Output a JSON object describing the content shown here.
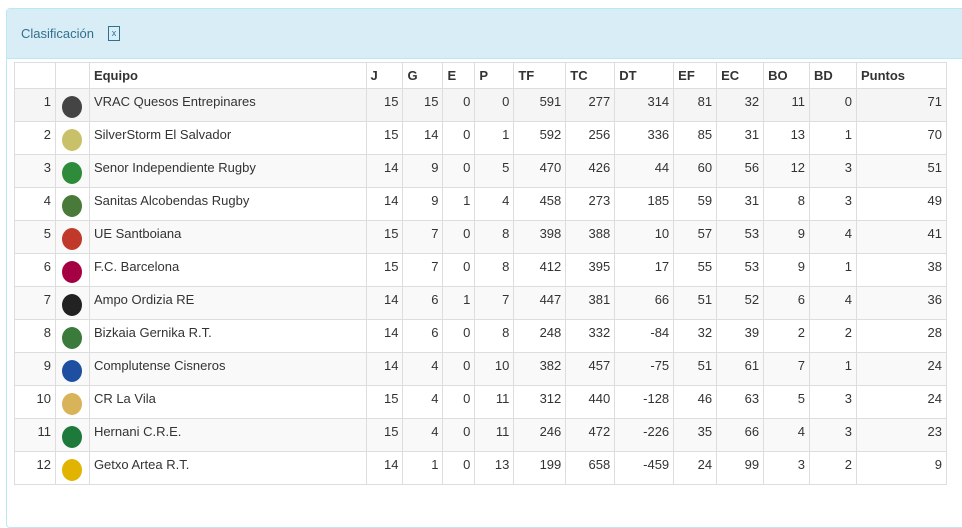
{
  "panel": {
    "title": "Clasificación",
    "export_icon": "excel-file-icon"
  },
  "columns": [
    "",
    "",
    "Equipo",
    "J",
    "G",
    "E",
    "P",
    "TF",
    "TC",
    "DT",
    "EF",
    "EC",
    "BO",
    "BD",
    "Puntos"
  ],
  "rows": [
    {
      "pos": "1",
      "team": "VRAC Quesos Entrepinares",
      "logo_color": "#444444",
      "J": "15",
      "G": "15",
      "E": "0",
      "P": "0",
      "TF": "591",
      "TC": "277",
      "DT": "314",
      "EF": "81",
      "EC": "32",
      "BO": "11",
      "BD": "0",
      "Puntos": "71"
    },
    {
      "pos": "2",
      "team": "SilverStorm El Salvador",
      "logo_color": "#c9c06a",
      "J": "15",
      "G": "14",
      "E": "0",
      "P": "1",
      "TF": "592",
      "TC": "256",
      "DT": "336",
      "EF": "85",
      "EC": "31",
      "BO": "13",
      "BD": "1",
      "Puntos": "70"
    },
    {
      "pos": "3",
      "team": "Senor Independiente Rugby",
      "logo_color": "#2e8b3a",
      "J": "14",
      "G": "9",
      "E": "0",
      "P": "5",
      "TF": "470",
      "TC": "426",
      "DT": "44",
      "EF": "60",
      "EC": "56",
      "BO": "12",
      "BD": "3",
      "Puntos": "51"
    },
    {
      "pos": "4",
      "team": "Sanitas Alcobendas Rugby",
      "logo_color": "#4a7a3a",
      "J": "14",
      "G": "9",
      "E": "1",
      "P": "4",
      "TF": "458",
      "TC": "273",
      "DT": "185",
      "EF": "59",
      "EC": "31",
      "BO": "8",
      "BD": "3",
      "Puntos": "49"
    },
    {
      "pos": "5",
      "team": "UE Santboiana",
      "logo_color": "#c0392b",
      "J": "15",
      "G": "7",
      "E": "0",
      "P": "8",
      "TF": "398",
      "TC": "388",
      "DT": "10",
      "EF": "57",
      "EC": "53",
      "BO": "9",
      "BD": "4",
      "Puntos": "41"
    },
    {
      "pos": "6",
      "team": "F.C. Barcelona",
      "logo_color": "#a50044",
      "J": "15",
      "G": "7",
      "E": "0",
      "P": "8",
      "TF": "412",
      "TC": "395",
      "DT": "17",
      "EF": "55",
      "EC": "53",
      "BO": "9",
      "BD": "1",
      "Puntos": "38"
    },
    {
      "pos": "7",
      "team": "Ampo Ordizia RE",
      "logo_color": "#222222",
      "J": "14",
      "G": "6",
      "E": "1",
      "P": "7",
      "TF": "447",
      "TC": "381",
      "DT": "66",
      "EF": "51",
      "EC": "52",
      "BO": "6",
      "BD": "4",
      "Puntos": "36"
    },
    {
      "pos": "8",
      "team": "Bizkaia Gernika R.T.",
      "logo_color": "#3a7a3a",
      "J": "14",
      "G": "6",
      "E": "0",
      "P": "8",
      "TF": "248",
      "TC": "332",
      "DT": "-84",
      "EF": "32",
      "EC": "39",
      "BO": "2",
      "BD": "2",
      "Puntos": "28"
    },
    {
      "pos": "9",
      "team": "Complutense Cisneros",
      "logo_color": "#1f4fa0",
      "J": "14",
      "G": "4",
      "E": "0",
      "P": "10",
      "TF": "382",
      "TC": "457",
      "DT": "-75",
      "EF": "51",
      "EC": "61",
      "BO": "7",
      "BD": "1",
      "Puntos": "24"
    },
    {
      "pos": "10",
      "team": "CR La Vila",
      "logo_color": "#d9b35a",
      "J": "15",
      "G": "4",
      "E": "0",
      "P": "11",
      "TF": "312",
      "TC": "440",
      "DT": "-128",
      "EF": "46",
      "EC": "63",
      "BO": "5",
      "BD": "3",
      "Puntos": "24"
    },
    {
      "pos": "11",
      "team": "Hernani C.R.E.",
      "logo_color": "#1e7a3a",
      "J": "15",
      "G": "4",
      "E": "0",
      "P": "11",
      "TF": "246",
      "TC": "472",
      "DT": "-226",
      "EF": "35",
      "EC": "66",
      "BO": "4",
      "BD": "3",
      "Puntos": "23"
    },
    {
      "pos": "12",
      "team": "Getxo Artea R.T.",
      "logo_color": "#e0b400",
      "J": "14",
      "G": "1",
      "E": "0",
      "P": "13",
      "TF": "199",
      "TC": "658",
      "DT": "-459",
      "EF": "24",
      "EC": "99",
      "BO": "3",
      "BD": "2",
      "Puntos": "9"
    }
  ]
}
